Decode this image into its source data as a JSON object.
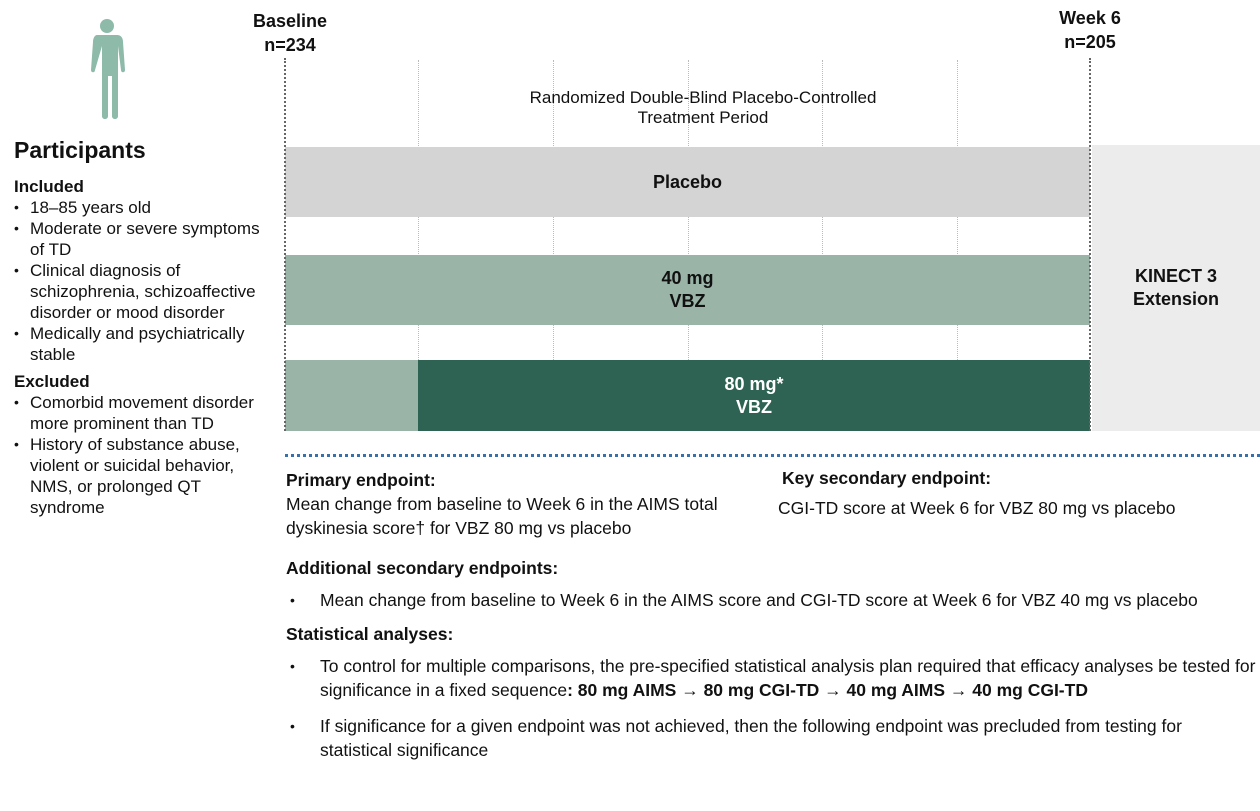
{
  "participants": {
    "title": "Participants",
    "included_heading": "Included",
    "included": [
      "18–85 years old",
      "Moderate or severe symptoms of TD",
      "Clinical diagnosis  of schizophrenia, schizoaffective disorder or mood disorder",
      "Medically and psychiatrically stable"
    ],
    "excluded_heading": "Excluded",
    "excluded": [
      "Comorbid movement disorder more prominent than TD",
      "History of substance abuse, violent or suicidal behavior, NMS, or prolonged QT syndrome"
    ]
  },
  "timeline": {
    "baseline": [
      "Baseline",
      "n=234"
    ],
    "week6": [
      "Week 6",
      "n=205"
    ],
    "period": [
      "Randomized Double-Blind Placebo-Controlled",
      "Treatment Period"
    ],
    "arms": [
      {
        "lines": [
          "Placebo"
        ]
      },
      {
        "lines": [
          "40 mg",
          "VBZ"
        ]
      },
      {
        "lines": [
          "80 mg*",
          "VBZ"
        ]
      }
    ],
    "extension": [
      "KINECT 3",
      "Extension"
    ]
  },
  "endpoints": {
    "primary_heading": "Primary endpoint:",
    "primary_text": "Mean change from baseline to Week 6 in the AIMS total dyskinesia score† for VBZ 80 mg vs placebo",
    "key_secondary_heading": "Key secondary endpoint:",
    "key_secondary_text": "CGI-TD score at Week 6 for VBZ 80 mg vs placebo",
    "additional_heading": "Additional secondary endpoints:",
    "additional": [
      "Mean change from baseline to Week 6 in the AIMS score and CGI-TD score at Week 6 for VBZ 40 mg vs placebo"
    ],
    "statistical_heading": "Statistical analyses:",
    "statistical": [
      {
        "text": "To control for multiple comparisons, the pre-specified statistical analysis plan required that efficacy analyses be tested for significance in a fixed sequence",
        "bold": ":  80 mg AIMS → 80 mg CGI-TD → 40 mg AIMS → 40 mg CGI-TD"
      },
      {
        "text": "If significance for a given endpoint was not achieved, then the following endpoint was precluded from testing for statistical significance"
      }
    ]
  }
}
